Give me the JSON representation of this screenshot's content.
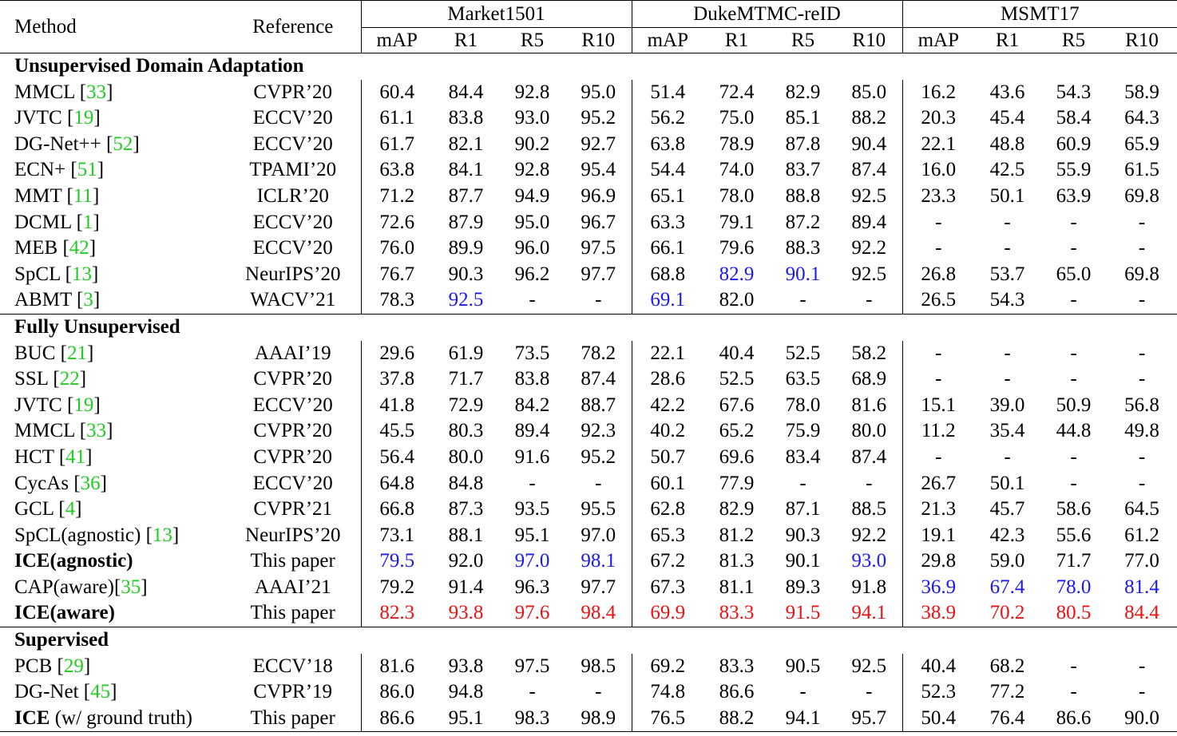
{
  "header": {
    "method": "Method",
    "reference": "Reference",
    "groups": [
      "Market1501",
      "DukeMTMC-reID",
      "MSMT17"
    ],
    "metrics": [
      "mAP",
      "R1",
      "R5",
      "R10"
    ]
  },
  "colors": {
    "citation": "#22cc22",
    "second_best": "#1a1aee",
    "best": "#ee1111"
  },
  "sections": [
    {
      "title": "Unsupervised Domain Adaptation",
      "rows": [
        {
          "name": "MMCL",
          "cite": "33",
          "ref": "CVPR’20",
          "values": [
            "60.4",
            "84.4",
            "92.8",
            "95.0",
            "51.4",
            "72.4",
            "82.9",
            "85.0",
            "16.2",
            "43.6",
            "54.3",
            "58.9"
          ]
        },
        {
          "name": "JVTC",
          "cite": "19",
          "ref": "ECCV’20",
          "values": [
            "61.1",
            "83.8",
            "93.0",
            "95.2",
            "56.2",
            "75.0",
            "85.1",
            "88.2",
            "20.3",
            "45.4",
            "58.4",
            "64.3"
          ]
        },
        {
          "name": "DG-Net++",
          "cite": "52",
          "ref": "ECCV’20",
          "values": [
            "61.7",
            "82.1",
            "90.2",
            "92.7",
            "63.8",
            "78.9",
            "87.8",
            "90.4",
            "22.1",
            "48.8",
            "60.9",
            "65.9"
          ]
        },
        {
          "name": "ECN+",
          "cite": "51",
          "ref": "TPAMI’20",
          "values": [
            "63.8",
            "84.1",
            "92.8",
            "95.4",
            "54.4",
            "74.0",
            "83.7",
            "87.4",
            "16.0",
            "42.5",
            "55.9",
            "61.5"
          ]
        },
        {
          "name": "MMT",
          "cite": "11",
          "ref": "ICLR’20",
          "values": [
            "71.2",
            "87.7",
            "94.9",
            "96.9",
            "65.1",
            "78.0",
            "88.8",
            "92.5",
            "23.3",
            "50.1",
            "63.9",
            "69.8"
          ]
        },
        {
          "name": "DCML",
          "cite": "1",
          "ref": "ECCV’20",
          "values": [
            "72.6",
            "87.9",
            "95.0",
            "96.7",
            "63.3",
            "79.1",
            "87.2",
            "89.4",
            "-",
            "-",
            "-",
            "-"
          ]
        },
        {
          "name": "MEB",
          "cite": "42",
          "ref": "ECCV’20",
          "values": [
            "76.0",
            "89.9",
            "96.0",
            "97.5",
            "66.1",
            "79.6",
            "88.3",
            "92.2",
            "-",
            "-",
            "-",
            "-"
          ]
        },
        {
          "name": "SpCL",
          "cite": "13",
          "ref": "NeurIPS’20",
          "values": [
            "76.7",
            "90.3",
            "96.2",
            "97.7",
            "68.8",
            "82.9",
            "90.1",
            "92.5",
            "26.8",
            "53.7",
            "65.0",
            "69.8"
          ],
          "colors": [
            "",
            "",
            "",
            "",
            "",
            "blue",
            "blue",
            "",
            "",
            "",
            "",
            ""
          ]
        },
        {
          "name": "ABMT",
          "cite": "3",
          "ref": "WACV’21",
          "values": [
            "78.3",
            "92.5",
            "-",
            "-",
            "69.1",
            "82.0",
            "-",
            "-",
            "26.5",
            "54.3",
            "-",
            "-"
          ],
          "colors": [
            "",
            "blue",
            "",
            "",
            "blue",
            "",
            "",
            "",
            "",
            "",
            "",
            ""
          ]
        }
      ]
    },
    {
      "title": "Fully Unsupervised",
      "rows": [
        {
          "name": "BUC",
          "cite": "21",
          "ref": "AAAI’19",
          "values": [
            "29.6",
            "61.9",
            "73.5",
            "78.2",
            "22.1",
            "40.4",
            "52.5",
            "58.2",
            "-",
            "-",
            "-",
            "-"
          ]
        },
        {
          "name": "SSL",
          "cite": "22",
          "ref": "CVPR’20",
          "values": [
            "37.8",
            "71.7",
            "83.8",
            "87.4",
            "28.6",
            "52.5",
            "63.5",
            "68.9",
            "-",
            "-",
            "-",
            "-"
          ]
        },
        {
          "name": "JVTC",
          "cite": "19",
          "ref": "ECCV’20",
          "values": [
            "41.8",
            "72.9",
            "84.2",
            "88.7",
            "42.2",
            "67.6",
            "78.0",
            "81.6",
            "15.1",
            "39.0",
            "50.9",
            "56.8"
          ]
        },
        {
          "name": "MMCL",
          "cite": "33",
          "ref": "CVPR’20",
          "values": [
            "45.5",
            "80.3",
            "89.4",
            "92.3",
            "40.2",
            "65.2",
            "75.9",
            "80.0",
            "11.2",
            "35.4",
            "44.8",
            "49.8"
          ]
        },
        {
          "name": "HCT",
          "cite": "41",
          "ref": "CVPR’20",
          "values": [
            "56.4",
            "80.0",
            "91.6",
            "95.2",
            "50.7",
            "69.6",
            "83.4",
            "87.4",
            "-",
            "-",
            "-",
            "-"
          ]
        },
        {
          "name": "CycAs",
          "cite": "36",
          "ref": "ECCV’20",
          "values": [
            "64.8",
            "84.8",
            "-",
            "-",
            "60.1",
            "77.9",
            "-",
            "-",
            "26.7",
            "50.1",
            "-",
            "-"
          ]
        },
        {
          "name": "GCL",
          "cite": "4",
          "ref": "CVPR’21",
          "values": [
            "66.8",
            "87.3",
            "93.5",
            "95.5",
            "62.8",
            "82.9",
            "87.1",
            "88.5",
            "21.3",
            "45.7",
            "58.6",
            "64.5"
          ]
        },
        {
          "name": "SpCL(agnostic)",
          "cite": "13",
          "ref": "NeurIPS’20",
          "values": [
            "73.1",
            "88.1",
            "95.1",
            "97.0",
            "65.3",
            "81.2",
            "90.3",
            "92.2",
            "19.1",
            "42.3",
            "55.6",
            "61.2"
          ]
        },
        {
          "name": "ICE(agnostic)",
          "bold_name": true,
          "ref": "This paper",
          "values": [
            "79.5",
            "92.0",
            "97.0",
            "98.1",
            "67.2",
            "81.3",
            "90.1",
            "93.0",
            "29.8",
            "59.0",
            "71.7",
            "77.0"
          ],
          "colors": [
            "blue",
            "",
            "blue",
            "blue",
            "",
            "",
            "",
            "blue",
            "",
            "",
            "",
            ""
          ]
        },
        {
          "name": "CAP(aware)",
          "cite": "35",
          "cite_nospace": true,
          "ref": "AAAI’21",
          "values": [
            "79.2",
            "91.4",
            "96.3",
            "97.7",
            "67.3",
            "81.1",
            "89.3",
            "91.8",
            "36.9",
            "67.4",
            "78.0",
            "81.4"
          ],
          "colors": [
            "",
            "",
            "",
            "",
            "",
            "",
            "",
            "",
            "blue",
            "blue",
            "blue",
            "blue"
          ]
        },
        {
          "name": "ICE(aware)",
          "bold_name": true,
          "ref": "This paper",
          "values": [
            "82.3",
            "93.8",
            "97.6",
            "98.4",
            "69.9",
            "83.3",
            "91.5",
            "94.1",
            "38.9",
            "70.2",
            "80.5",
            "84.4"
          ],
          "colors": [
            "red",
            "red",
            "red",
            "red",
            "red",
            "red",
            "red",
            "red",
            "red",
            "red",
            "red",
            "red"
          ]
        }
      ]
    },
    {
      "title": "Supervised",
      "rows": [
        {
          "name": "PCB",
          "cite": "29",
          "ref": "ECCV’18",
          "values": [
            "81.6",
            "93.8",
            "97.5",
            "98.5",
            "69.2",
            "83.3",
            "90.5",
            "92.5",
            "40.4",
            "68.2",
            "-",
            "-"
          ]
        },
        {
          "name": "DG-Net",
          "cite": "45",
          "ref": "CVPR’19",
          "values": [
            "86.0",
            "94.8",
            "-",
            "-",
            "74.8",
            "86.6",
            "-",
            "-",
            "52.3",
            "77.2",
            "-",
            "-"
          ]
        },
        {
          "name": "ICE",
          "bold_name": true,
          "suffix": " (w/ ground truth)",
          "ref": "This paper",
          "values": [
            "86.6",
            "95.1",
            "98.3",
            "98.9",
            "76.5",
            "88.2",
            "94.1",
            "95.7",
            "50.4",
            "76.4",
            "86.6",
            "90.0"
          ]
        }
      ]
    }
  ]
}
